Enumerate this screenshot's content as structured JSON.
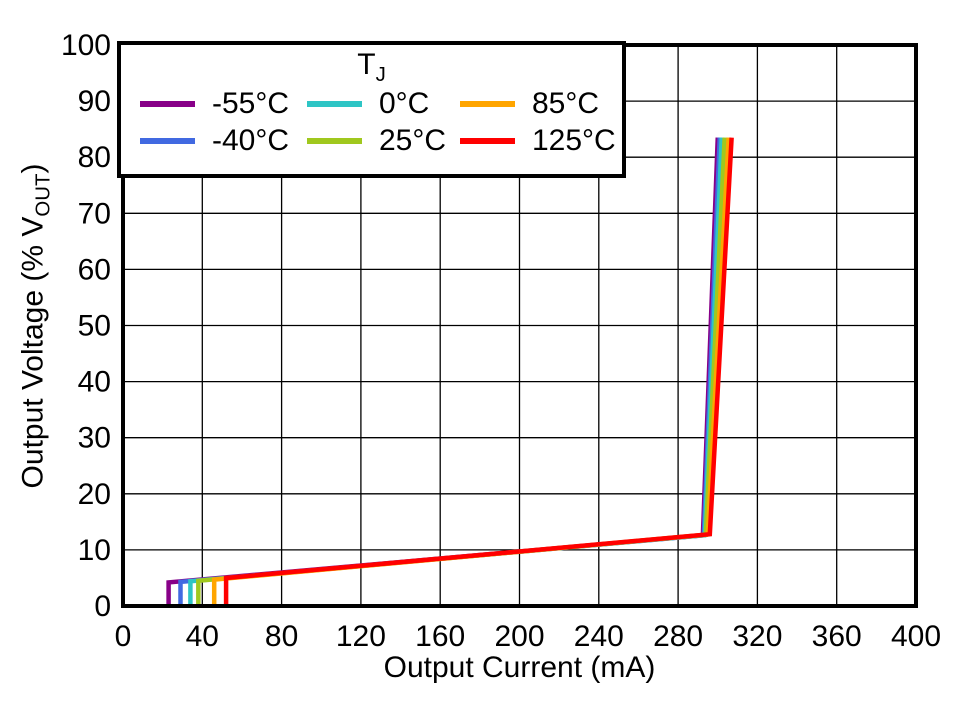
{
  "chart_data": {
    "type": "line",
    "title": "",
    "xlabel": "Output Current (mA)",
    "ylabel": {
      "pre": "Output Voltage (% V",
      "sub": "OUT",
      "post": ")"
    },
    "xlim": [
      0,
      400
    ],
    "ylim": [
      0,
      100
    ],
    "xticks": [
      0,
      40,
      80,
      120,
      160,
      200,
      240,
      280,
      320,
      360,
      400
    ],
    "yticks": [
      0,
      10,
      20,
      30,
      40,
      50,
      60,
      70,
      80,
      90,
      100
    ],
    "grid": true,
    "legend": {
      "title": {
        "main": "T",
        "sub": "J"
      },
      "position": "upper-left",
      "rows": [
        [
          "-55°C",
          "0°C",
          "85°C"
        ],
        [
          "-40°C",
          "25°C",
          "125°C"
        ]
      ]
    },
    "series": [
      {
        "name": "-55°C",
        "color": "#880088",
        "points": [
          [
            23,
            0
          ],
          [
            23,
            4.2
          ],
          [
            292.5,
            12.6
          ],
          [
            300,
            83.5
          ]
        ]
      },
      {
        "name": "-40°C",
        "color": "#4169E1",
        "points": [
          [
            29,
            0
          ],
          [
            29,
            4.3
          ],
          [
            293,
            12.6
          ],
          [
            301,
            83.5
          ]
        ]
      },
      {
        "name": "0°C",
        "color": "#2EC5C5",
        "points": [
          [
            34,
            0
          ],
          [
            34,
            4.4
          ],
          [
            293.5,
            12.65
          ],
          [
            302,
            83.5
          ]
        ]
      },
      {
        "name": "25°C",
        "color": "#A0C81E",
        "points": [
          [
            38,
            0
          ],
          [
            38,
            4.5
          ],
          [
            294,
            12.7
          ],
          [
            303.5,
            83.5
          ]
        ]
      },
      {
        "name": "85°C",
        "color": "#FFA500",
        "points": [
          [
            46,
            0
          ],
          [
            46,
            4.7
          ],
          [
            295,
            12.75
          ],
          [
            305.5,
            83.5
          ]
        ]
      },
      {
        "name": "125°C",
        "color": "#FF0000",
        "points": [
          [
            52,
            0
          ],
          [
            52,
            5.0
          ],
          [
            296,
            12.8
          ],
          [
            307,
            83.5
          ]
        ]
      }
    ],
    "colors": {
      "frame": "#000000",
      "gridline": "#000000",
      "background": "#FFFFFF"
    }
  }
}
